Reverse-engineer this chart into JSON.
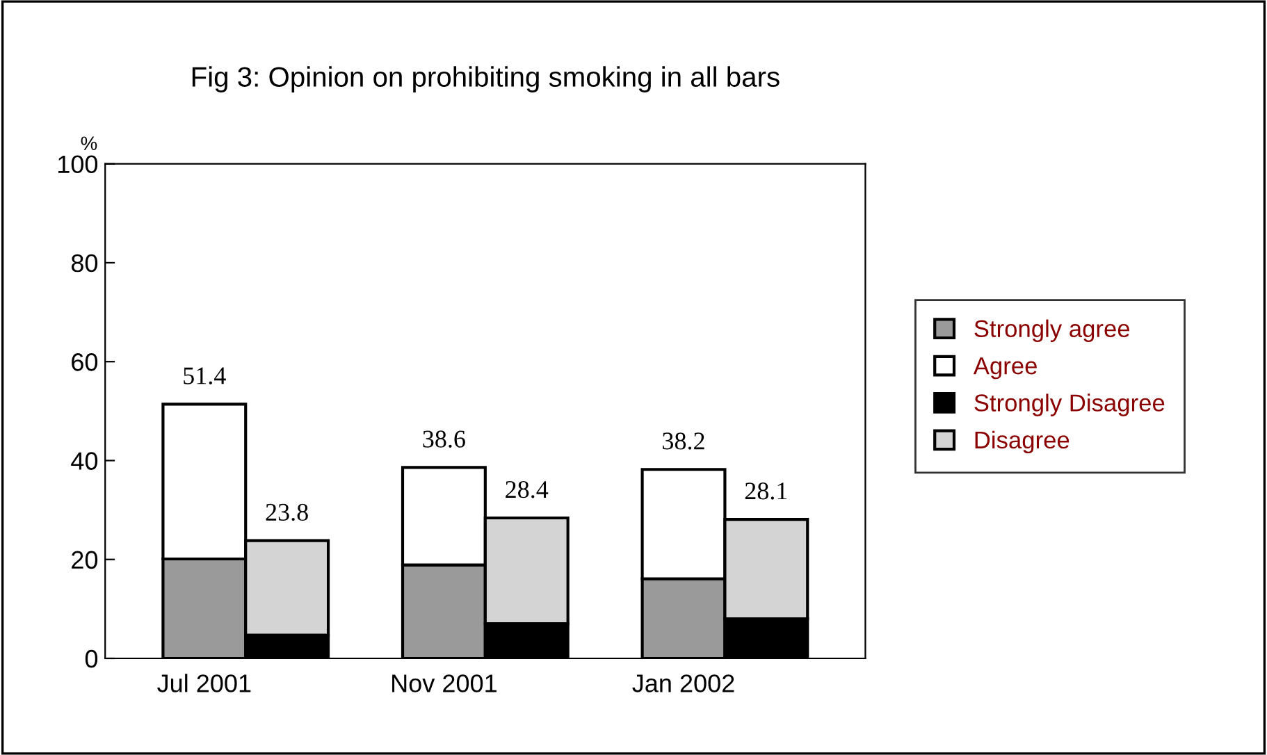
{
  "chart_data": {
    "type": "bar",
    "title": "Fig 3: Opinion on prohibiting smoking in all bars",
    "ylabel": "%",
    "categories": [
      "Jul 2001",
      null,
      "Nov 2001",
      null,
      "Jan 2002",
      null
    ],
    "stacked": true,
    "series": [
      {
        "name": "Strongly agree",
        "color": "#9a9a9a",
        "values": [
          20.1,
          null,
          18.9,
          null,
          16.1,
          null
        ]
      },
      {
        "name": "Agree",
        "color": "#ffffff",
        "values": [
          31.3,
          null,
          19.7,
          null,
          22.1,
          null
        ]
      },
      {
        "name": "Strongly Disagree",
        "color": "#000000",
        "values": [
          null,
          4.7,
          null,
          7.0,
          null,
          8.0
        ]
      },
      {
        "name": "Disagree",
        "color": "#d4d4d4",
        "values": [
          null,
          19.1,
          null,
          21.4,
          null,
          20.1
        ]
      }
    ],
    "totals": [
      "51.4",
      "23.8",
      "38.6",
      "28.4",
      "38.2",
      "28.1"
    ],
    "ylim": [
      0,
      100
    ],
    "yticks": [
      0,
      20,
      40,
      60,
      80,
      100
    ],
    "grid": false,
    "legend": "right"
  }
}
